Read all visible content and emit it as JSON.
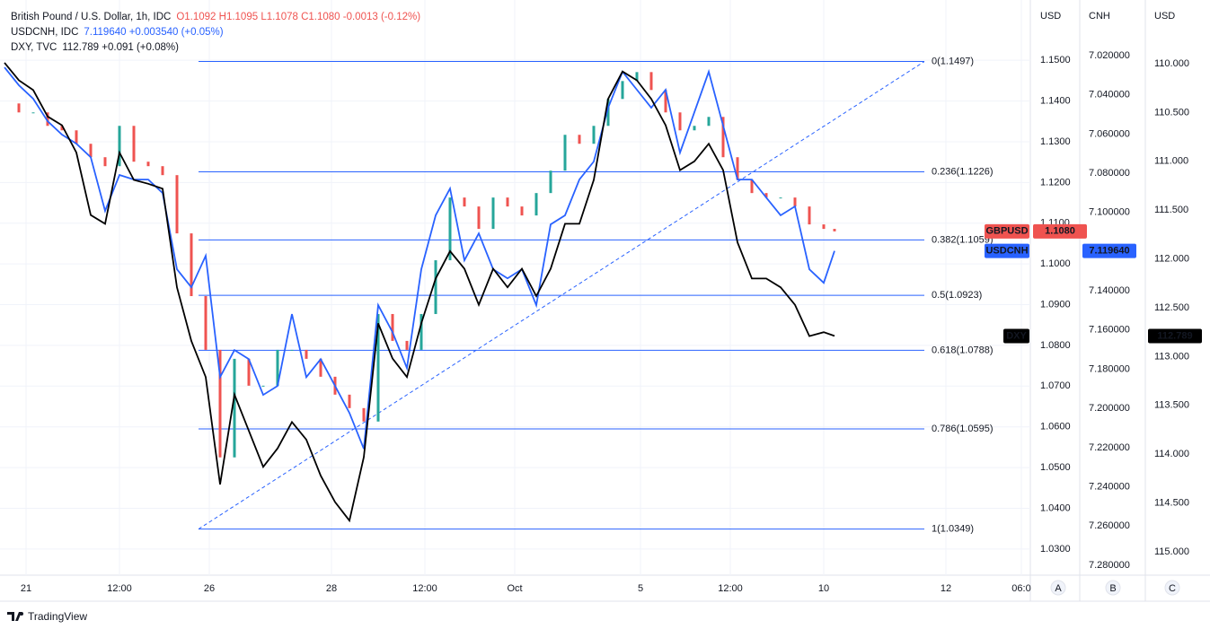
{
  "chart_data": {
    "type": "line",
    "legend": [
      {
        "name": "British Pound / U.S. Dollar, 1h, IDC",
        "quote": "O1.1092 H1.1095 L1.1078 C1.1080 -0.0013 (-0.12%)",
        "color": "#ef5350"
      },
      {
        "name": "USDCNH, IDC",
        "quote": "7.119640 +0.003540 (+0.05%)",
        "color": "#2962ff"
      },
      {
        "name": "DXY, TVC",
        "quote": "112.789 +0.091 (+0.08%)",
        "color": "#131722"
      }
    ],
    "grid": true,
    "xlim": [
      0,
      285
    ],
    "xticks": [
      {
        "value": 6,
        "label": "21"
      },
      {
        "value": 32,
        "label": "12:00"
      },
      {
        "value": 57,
        "label": "26"
      },
      {
        "value": 91,
        "label": "28"
      },
      {
        "value": 117,
        "label": "12:00"
      },
      {
        "value": 142,
        "label": "Oct"
      },
      {
        "value": 177,
        "label": "5"
      },
      {
        "value": 202,
        "label": "12:00"
      },
      {
        "value": 228,
        "label": "10"
      },
      {
        "value": 262,
        "label": "12"
      },
      {
        "value": 283,
        "label": "06:0"
      }
    ],
    "axes": [
      {
        "title": "USD",
        "ylim": [
          1.0238,
          1.1637
        ],
        "yticks": [
          {
            "value": 1.03,
            "label": "1.0300"
          },
          {
            "value": 1.04,
            "label": "1.0400"
          },
          {
            "value": 1.05,
            "label": "1.0500"
          },
          {
            "value": 1.06,
            "label": "1.0600"
          },
          {
            "value": 1.07,
            "label": "1.0700"
          },
          {
            "value": 1.08,
            "label": "1.0800"
          },
          {
            "value": 1.09,
            "label": "1.0900"
          },
          {
            "value": 1.1,
            "label": "1.1000"
          },
          {
            "value": 1.11,
            "label": "1.1100"
          },
          {
            "value": 1.12,
            "label": "1.1200"
          },
          {
            "value": 1.13,
            "label": "1.1300"
          },
          {
            "value": 1.14,
            "label": "1.1400"
          },
          {
            "value": 1.15,
            "label": "1.1500"
          }
        ]
      },
      {
        "title": "CNH",
        "ylim": [
          7.2846,
          6.9939
        ],
        "yticks": [
          {
            "value": 7.02,
            "label": "7.020000"
          },
          {
            "value": 7.04,
            "label": "7.040000"
          },
          {
            "value": 7.06,
            "label": "7.060000"
          },
          {
            "value": 7.08,
            "label": "7.080000"
          },
          {
            "value": 7.1,
            "label": "7.100000"
          },
          {
            "value": 7.12,
            "label": "7.120000"
          },
          {
            "value": 7.14,
            "label": "7.140000"
          },
          {
            "value": 7.16,
            "label": "7.160000"
          },
          {
            "value": 7.18,
            "label": "7.180000"
          },
          {
            "value": 7.2,
            "label": "7.200000"
          },
          {
            "value": 7.22,
            "label": "7.220000"
          },
          {
            "value": 7.24,
            "label": "7.240000"
          },
          {
            "value": 7.26,
            "label": "7.260000"
          },
          {
            "value": 7.28,
            "label": "7.280000"
          }
        ]
      },
      {
        "title": "USD",
        "ylim": [
          115.23,
          109.393
        ],
        "yticks": [
          {
            "value": 110,
            "label": "110.000"
          },
          {
            "value": 110.5,
            "label": "110.500"
          },
          {
            "value": 111,
            "label": "111.000"
          },
          {
            "value": 111.5,
            "label": "111.500"
          },
          {
            "value": 112,
            "label": "112.000"
          },
          {
            "value": 112.5,
            "label": "112.500"
          },
          {
            "value": 113,
            "label": "113.000"
          },
          {
            "value": 113.5,
            "label": "113.500"
          },
          {
            "value": 114,
            "label": "114.000"
          },
          {
            "value": 114.5,
            "label": "114.500"
          },
          {
            "value": 115,
            "label": "115.000"
          }
        ]
      }
    ],
    "x": [
      0,
      4,
      8,
      12,
      16,
      20,
      24,
      28,
      32,
      36,
      40,
      44,
      48,
      52,
      56,
      60,
      64,
      68,
      72,
      76,
      80,
      84,
      88,
      92,
      96,
      100,
      104,
      108,
      112,
      116,
      120,
      124,
      128,
      132,
      136,
      140,
      144,
      148,
      152,
      156,
      160,
      164,
      168,
      172,
      176,
      180,
      184,
      188,
      192,
      196,
      200,
      204,
      208,
      212,
      216,
      220,
      224,
      228,
      231
    ],
    "series": [
      {
        "name": "GBPUSD",
        "type": "candle",
        "axis": 0,
        "color": "#ef5350",
        "up_color": "#26a69a",
        "down_color": "#ef5350",
        "last_label": "1.1080",
        "values": [
          1.1394,
          1.1372,
          1.1372,
          1.1339,
          1.1328,
          1.1295,
          1.1262,
          1.124,
          1.1339,
          1.1251,
          1.124,
          1.1218,
          1.1075,
          1.0921,
          1.0789,
          1.0525,
          1.0767,
          1.0701,
          1.0701,
          1.0789,
          1.0789,
          1.0767,
          1.0723,
          1.0679,
          1.0646,
          1.0613,
          1.0877,
          1.0811,
          1.0789,
          1.0877,
          1.1009,
          1.1163,
          1.1141,
          1.1086,
          1.1163,
          1.1141,
          1.1119,
          1.1174,
          1.1229,
          1.1317,
          1.1295,
          1.1339,
          1.1405,
          1.1449,
          1.1471,
          1.1427,
          1.1372,
          1.1328,
          1.1339,
          1.1361,
          1.1262,
          1.1207,
          1.1174,
          1.1163,
          1.1163,
          1.1141,
          1.1097,
          1.1086,
          1.108
        ]
      },
      {
        "name": "USDCNH",
        "type": "line",
        "axis": 1,
        "color": "#2962ff",
        "last_label": "7.119640",
        "values": [
          7.026,
          7.0351,
          7.042,
          7.0534,
          7.0603,
          7.0649,
          7.0718,
          7.0992,
          7.0809,
          7.0832,
          7.0832,
          7.0901,
          7.129,
          7.1382,
          7.1221,
          7.184,
          7.1702,
          7.1748,
          7.1931,
          7.1885,
          7.1519,
          7.184,
          7.1748,
          7.1885,
          7.2023,
          7.2206,
          7.1473,
          7.1611,
          7.1794,
          7.129,
          7.1015,
          7.0878,
          7.1244,
          7.1107,
          7.129,
          7.1336,
          7.129,
          7.1473,
          7.1061,
          7.1015,
          7.0832,
          7.074,
          7.0466,
          7.0282,
          7.0374,
          7.0466,
          7.0374,
          7.0695,
          7.0489,
          7.0282,
          7.0557,
          7.0832,
          7.0832,
          7.0924,
          7.1015,
          7.0969,
          7.129,
          7.1359,
          7.1196
        ]
      },
      {
        "name": "DXY",
        "type": "line",
        "axis": 2,
        "color": "#000000",
        "last_label": "112.789",
        "values": [
          109.99,
          110.17,
          110.27,
          110.54,
          110.63,
          110.91,
          111.55,
          111.64,
          110.91,
          111.19,
          111.23,
          111.28,
          112.29,
          112.84,
          113.21,
          114.31,
          113.39,
          113.76,
          114.13,
          113.94,
          113.67,
          113.85,
          114.22,
          114.49,
          114.68,
          114.03,
          112.66,
          113.02,
          113.21,
          112.66,
          112.2,
          111.92,
          112.1,
          112.47,
          112.1,
          112.29,
          112.1,
          112.38,
          112.1,
          111.64,
          111.64,
          111.19,
          110.36,
          110.08,
          110.17,
          110.36,
          110.63,
          111.09,
          111.0,
          110.82,
          111.09,
          111.83,
          112.2,
          112.2,
          112.29,
          112.47,
          112.79,
          112.75,
          112.789
        ]
      }
    ],
    "fib": {
      "x": [
        54,
        256
      ],
      "color": "#2962ff",
      "levels": [
        {
          "label": "0(1.1497)",
          "value": 1.1497
        },
        {
          "label": "0.236(1.1226)",
          "value": 1.1226
        },
        {
          "label": "0.382(1.1059)",
          "value": 1.1059
        },
        {
          "label": "0.5(1.0923)",
          "value": 1.0923
        },
        {
          "label": "0.618(1.0788)",
          "value": 1.0788
        },
        {
          "label": "0.786(1.0595)",
          "value": 1.0595
        },
        {
          "label": "1(1.0349)",
          "value": 1.0349
        }
      ]
    },
    "scale_buttons": [
      "A",
      "B",
      "C"
    ],
    "brand": "TradingView"
  }
}
